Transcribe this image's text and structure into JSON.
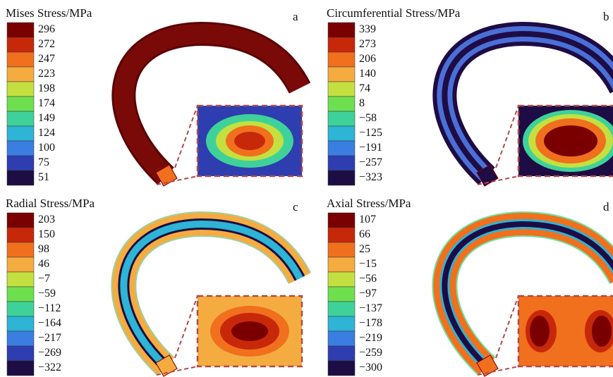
{
  "panels": [
    {
      "title": "Mises Stress/MPa",
      "letter": "a",
      "legend": [
        "296",
        "272",
        "247",
        "223",
        "198",
        "174",
        "149",
        "124",
        "100",
        "75",
        "51"
      ]
    },
    {
      "title": "Circumferential Stress/MPa",
      "letter": "b",
      "legend": [
        "339",
        "273",
        "206",
        "140",
        "74",
        "8",
        "−58",
        "−125",
        "−191",
        "−257",
        "−323"
      ]
    },
    {
      "title": "Radial Stress/MPa",
      "letter": "c",
      "legend": [
        "203",
        "150",
        "98",
        "46",
        "−7",
        "−59",
        "−112",
        "−164",
        "−217",
        "−269",
        "−322"
      ]
    },
    {
      "title": "Axial Stress/MPa",
      "letter": "d",
      "legend": [
        "107",
        "66",
        "25",
        "−15",
        "−56",
        "−97",
        "−137",
        "−178",
        "−219",
        "−259",
        "−300"
      ]
    }
  ]
}
